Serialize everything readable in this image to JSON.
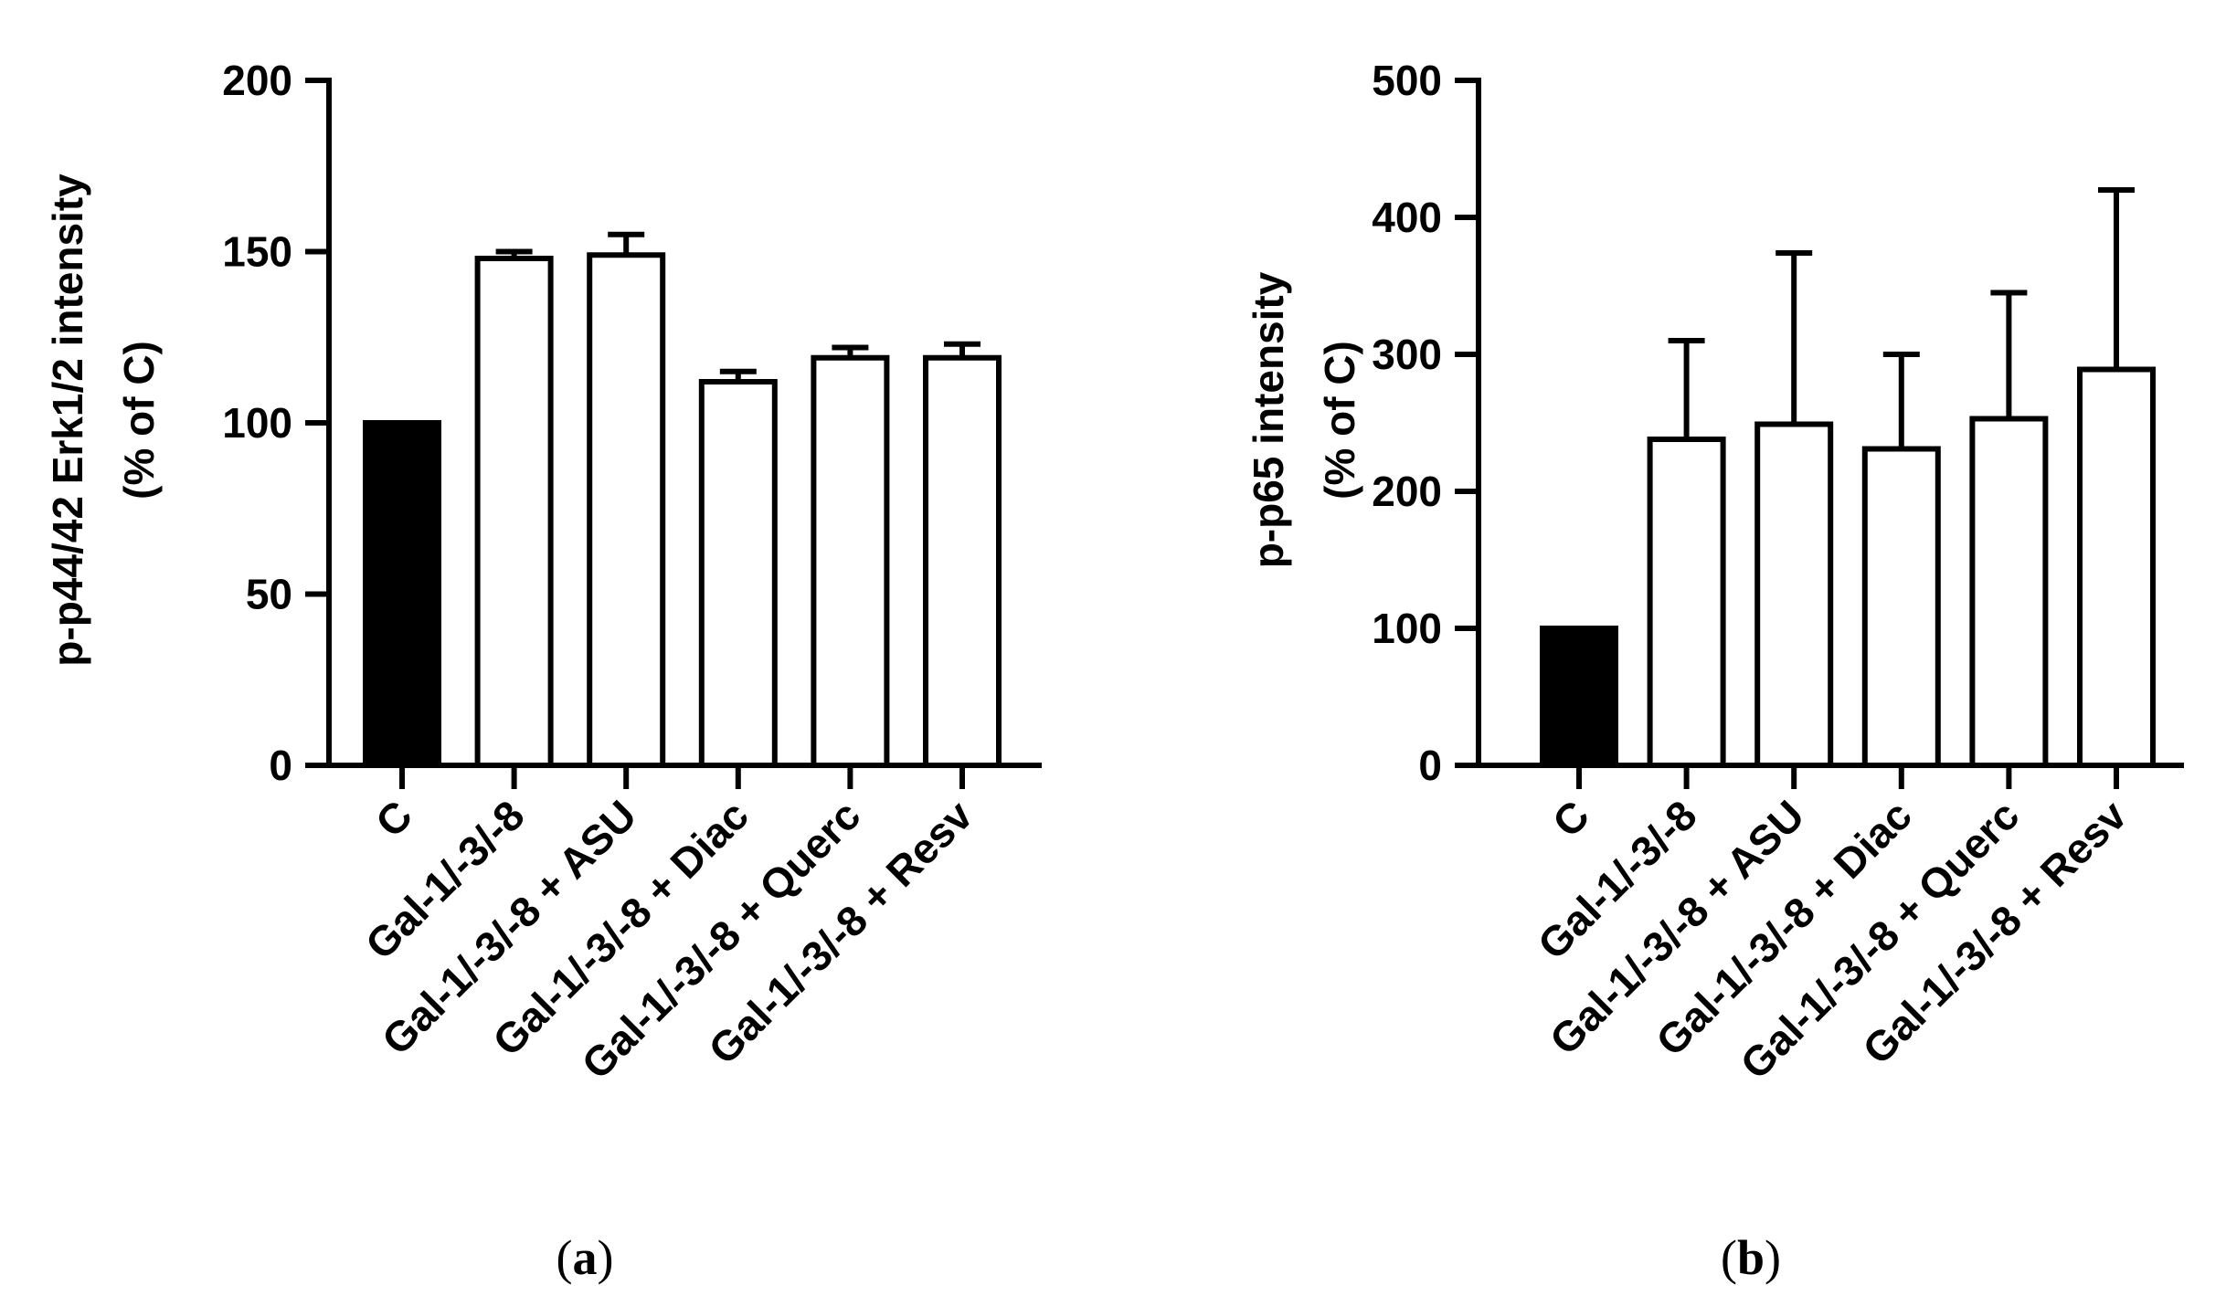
{
  "chart_data": [
    {
      "type": "bar",
      "panel": "a",
      "ylabel_line1": "p-p44/42 Erk1/2 intensity",
      "ylabel_line2": "(% of C)",
      "categories": [
        "C",
        "Gal-1/-3/-8",
        "Gal-1/-3/-8 + ASU",
        "Gal-1/-3/-8 + Diac",
        "Gal-1/-3/-8 + Querc",
        "Gal-1/-3/-8 + Resv"
      ],
      "values": [
        100,
        148,
        149,
        112,
        119,
        119
      ],
      "errors": [
        0,
        2,
        6,
        3,
        3,
        4
      ],
      "fills": [
        "#000000",
        "#ffffff",
        "#ffffff",
        "#ffffff",
        "#ffffff",
        "#ffffff"
      ],
      "ylim": [
        0,
        200
      ],
      "yticks": [
        0,
        50,
        100,
        150,
        200
      ],
      "caption": {
        "open": "(",
        "letter": "a",
        "close": ")"
      }
    },
    {
      "type": "bar",
      "panel": "b",
      "ylabel_line1": "p-p65 intensity",
      "ylabel_line2": "(% of C)",
      "categories": [
        "C",
        "Gal-1/-3/-8",
        "Gal-1/-3/-8 + ASU",
        "Gal-1/-3/-8 + Diac",
        "Gal-1/-3/-8 + Querc",
        "Gal-1/-3/-8 + Resv"
      ],
      "values": [
        100,
        238,
        249,
        231,
        253,
        289
      ],
      "errors": [
        0,
        72,
        125,
        69,
        92,
        131
      ],
      "fills": [
        "#000000",
        "#ffffff",
        "#ffffff",
        "#ffffff",
        "#ffffff",
        "#ffffff"
      ],
      "ylim": [
        0,
        500
      ],
      "yticks": [
        0,
        100,
        200,
        300,
        400,
        500
      ],
      "caption": {
        "open": "(",
        "letter": "b",
        "close": ")"
      }
    }
  ]
}
